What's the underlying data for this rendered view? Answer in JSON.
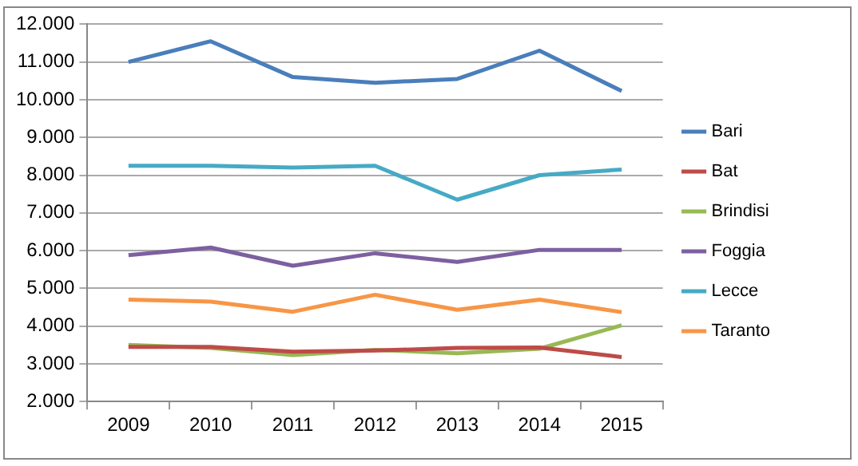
{
  "chart_data": {
    "type": "line",
    "categories": [
      "2009",
      "2010",
      "2011",
      "2012",
      "2013",
      "2014",
      "2015"
    ],
    "series": [
      {
        "name": "Bari",
        "color": "#4a7ebb",
        "values": [
          11000,
          11550,
          10600,
          10450,
          10550,
          11300,
          10230
        ]
      },
      {
        "name": "Bat",
        "color": "#be4b48",
        "values": [
          3450,
          3450,
          3320,
          3350,
          3420,
          3430,
          3180
        ]
      },
      {
        "name": "Brindisi",
        "color": "#98b954",
        "values": [
          3500,
          3420,
          3230,
          3370,
          3280,
          3400,
          4020
        ]
      },
      {
        "name": "Foggia",
        "color": "#7d60a0",
        "values": [
          5880,
          6080,
          5600,
          5930,
          5700,
          6020,
          6020
        ]
      },
      {
        "name": "Lecce",
        "color": "#46aac5",
        "values": [
          8250,
          8250,
          8200,
          8250,
          7350,
          8000,
          8150
        ]
      },
      {
        "name": "Taranto",
        "color": "#f79646",
        "values": [
          4700,
          4650,
          4380,
          4830,
          4430,
          4700,
          4370
        ]
      }
    ],
    "ylim": [
      2000,
      12000
    ],
    "yticks": [
      {
        "value": 2000,
        "label": "2.000"
      },
      {
        "value": 3000,
        "label": "3.000"
      },
      {
        "value": 4000,
        "label": "4.000"
      },
      {
        "value": 5000,
        "label": "5.000"
      },
      {
        "value": 6000,
        "label": "6.000"
      },
      {
        "value": 7000,
        "label": "7.000"
      },
      {
        "value": 8000,
        "label": "8.000"
      },
      {
        "value": 9000,
        "label": "9.000"
      },
      {
        "value": 10000,
        "label": "10.000"
      },
      {
        "value": 11000,
        "label": "11.000"
      },
      {
        "value": 12000,
        "label": "12.000"
      }
    ],
    "grid": "y",
    "legend": "right",
    "marker": "none",
    "line_style": "solid"
  }
}
